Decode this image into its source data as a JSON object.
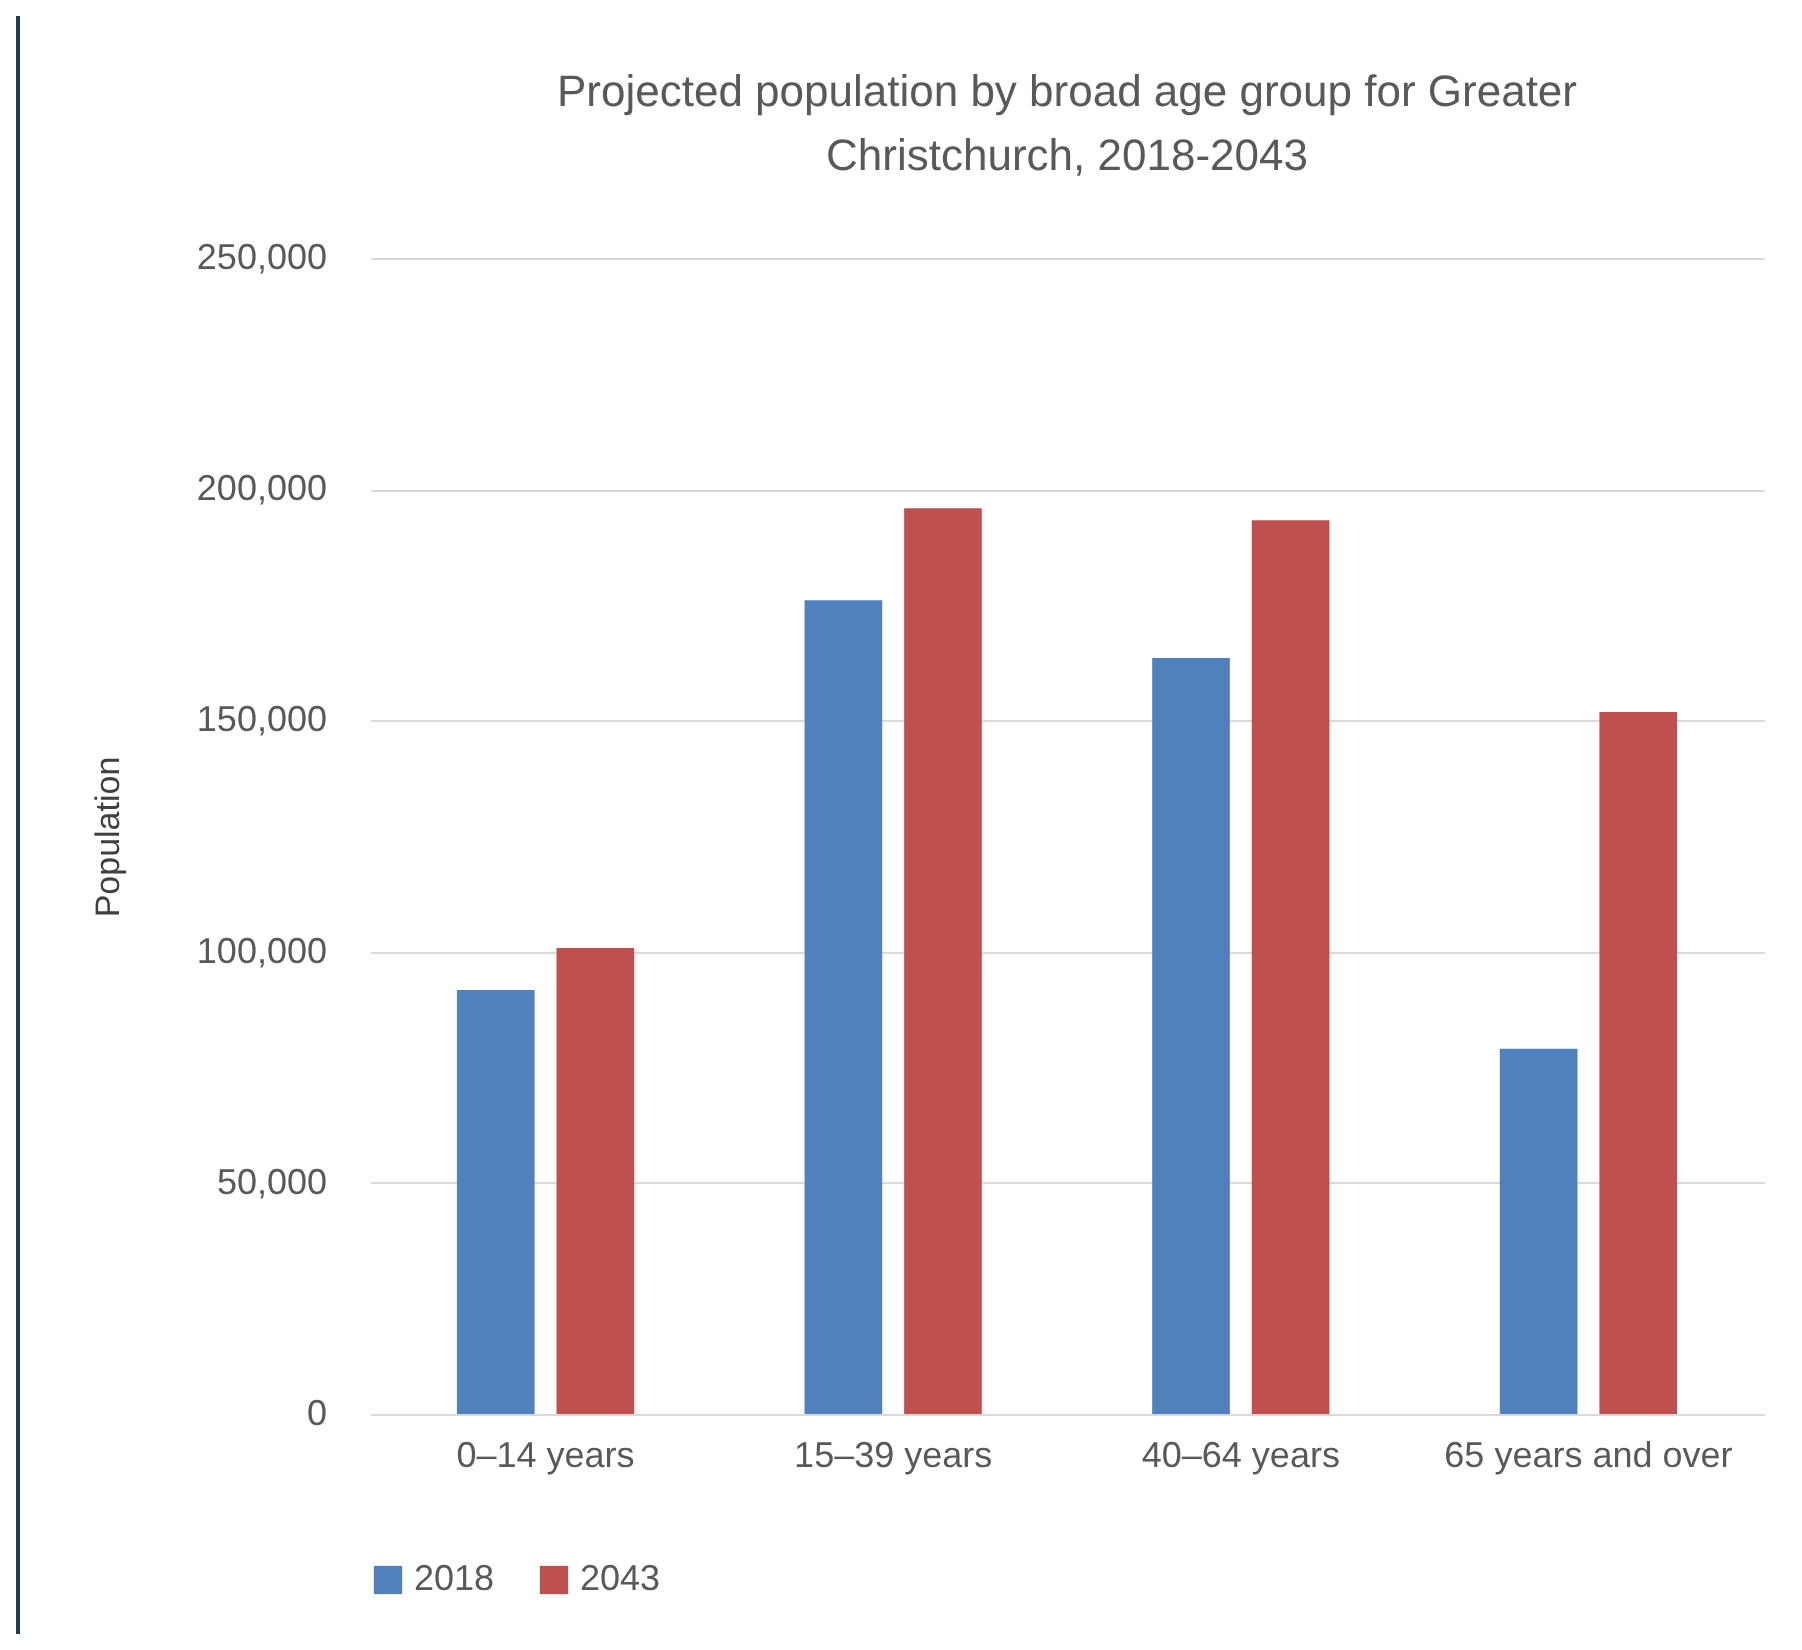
{
  "chart_data": {
    "type": "bar",
    "title": "Projected population by broad age group for Greater Christchurch, 2018-2043",
    "ylabel": "Population",
    "categories": [
      "0–14 years",
      "15–39 years",
      "40–64 years",
      "65 years and over"
    ],
    "series": [
      {
        "name": "2018",
        "color": "#4f81bd",
        "values": [
          91700,
          176000,
          163500,
          79000
        ]
      },
      {
        "name": "2043",
        "color": "#c0504d",
        "values": [
          100800,
          195900,
          193300,
          151800
        ]
      }
    ],
    "ylim": [
      0,
      250000
    ],
    "yticks": [
      {
        "value": 0,
        "label": "0"
      },
      {
        "value": 50000,
        "label": "50,000"
      },
      {
        "value": 100000,
        "label": "100,000"
      },
      {
        "value": 150000,
        "label": "150,000"
      },
      {
        "value": 200000,
        "label": "200,000"
      },
      {
        "value": 250000,
        "label": "250,000"
      }
    ],
    "grid": "y",
    "legend": "bottom"
  }
}
